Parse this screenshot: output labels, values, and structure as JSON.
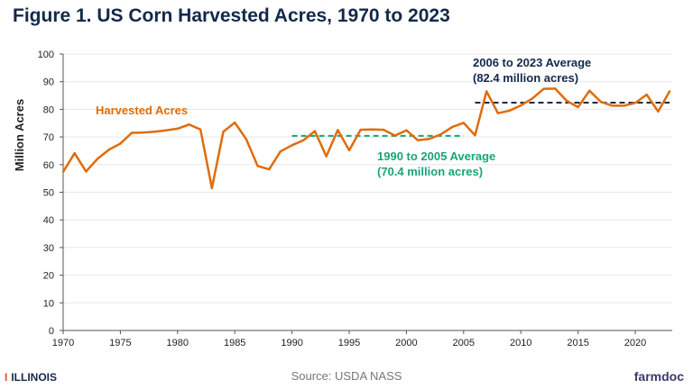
{
  "chart_data": {
    "type": "line",
    "title": "Figure 1. US Corn Harvested Acres, 1970 to 2023",
    "ylabel": "Million Acres",
    "xlabel": "",
    "ylim": [
      0,
      100
    ],
    "xlim": [
      1970,
      2023
    ],
    "yticks": [
      0,
      10,
      20,
      30,
      40,
      50,
      60,
      70,
      80,
      90,
      100
    ],
    "xticks": [
      1970,
      1975,
      1980,
      1985,
      1990,
      1995,
      2000,
      2005,
      2010,
      2015,
      2020
    ],
    "grid": "horizontal",
    "series": [
      {
        "name": "Harvested Acres",
        "color": "#e06c0a",
        "x": [
          1970,
          1971,
          1972,
          1973,
          1974,
          1975,
          1976,
          1977,
          1978,
          1979,
          1980,
          1981,
          1982,
          1983,
          1984,
          1985,
          1986,
          1987,
          1988,
          1989,
          1990,
          1991,
          1992,
          1993,
          1994,
          1995,
          1996,
          1997,
          1998,
          1999,
          2000,
          2001,
          2002,
          2003,
          2004,
          2005,
          2006,
          2007,
          2008,
          2009,
          2010,
          2011,
          2012,
          2013,
          2014,
          2015,
          2016,
          2017,
          2018,
          2019,
          2020,
          2021,
          2022,
          2023
        ],
        "values": [
          57.4,
          64.1,
          57.5,
          62.1,
          65.4,
          67.6,
          71.5,
          71.6,
          71.9,
          72.4,
          73.0,
          74.5,
          72.7,
          51.5,
          71.9,
          75.2,
          69.2,
          59.5,
          58.3,
          64.8,
          67.0,
          68.8,
          72.1,
          63.0,
          72.5,
          65.2,
          72.6,
          72.7,
          72.6,
          70.5,
          72.4,
          68.8,
          69.3,
          70.9,
          73.6,
          75.1,
          70.6,
          86.5,
          78.6,
          79.5,
          81.4,
          83.9,
          87.4,
          87.5,
          83.1,
          80.8,
          86.7,
          82.7,
          81.3,
          81.3,
          82.3,
          85.3,
          79.2,
          86.5
        ]
      }
    ],
    "averages": [
      {
        "label1": "1990 to 2005 Average",
        "label2": "(70.4 million acres)",
        "from": 1990,
        "to": 2005,
        "value": 70.4,
        "color": "#1aa37a"
      },
      {
        "label1": "2006 to 2023 Average",
        "label2": "(82.4 million acres)",
        "from": 2006,
        "to": 2023,
        "value": 82.4,
        "color": "#13294b"
      }
    ]
  },
  "footer": {
    "source": "Source: USDA NASS",
    "left_logo": "ILLINOIS",
    "right_logo": "farmdoc"
  }
}
